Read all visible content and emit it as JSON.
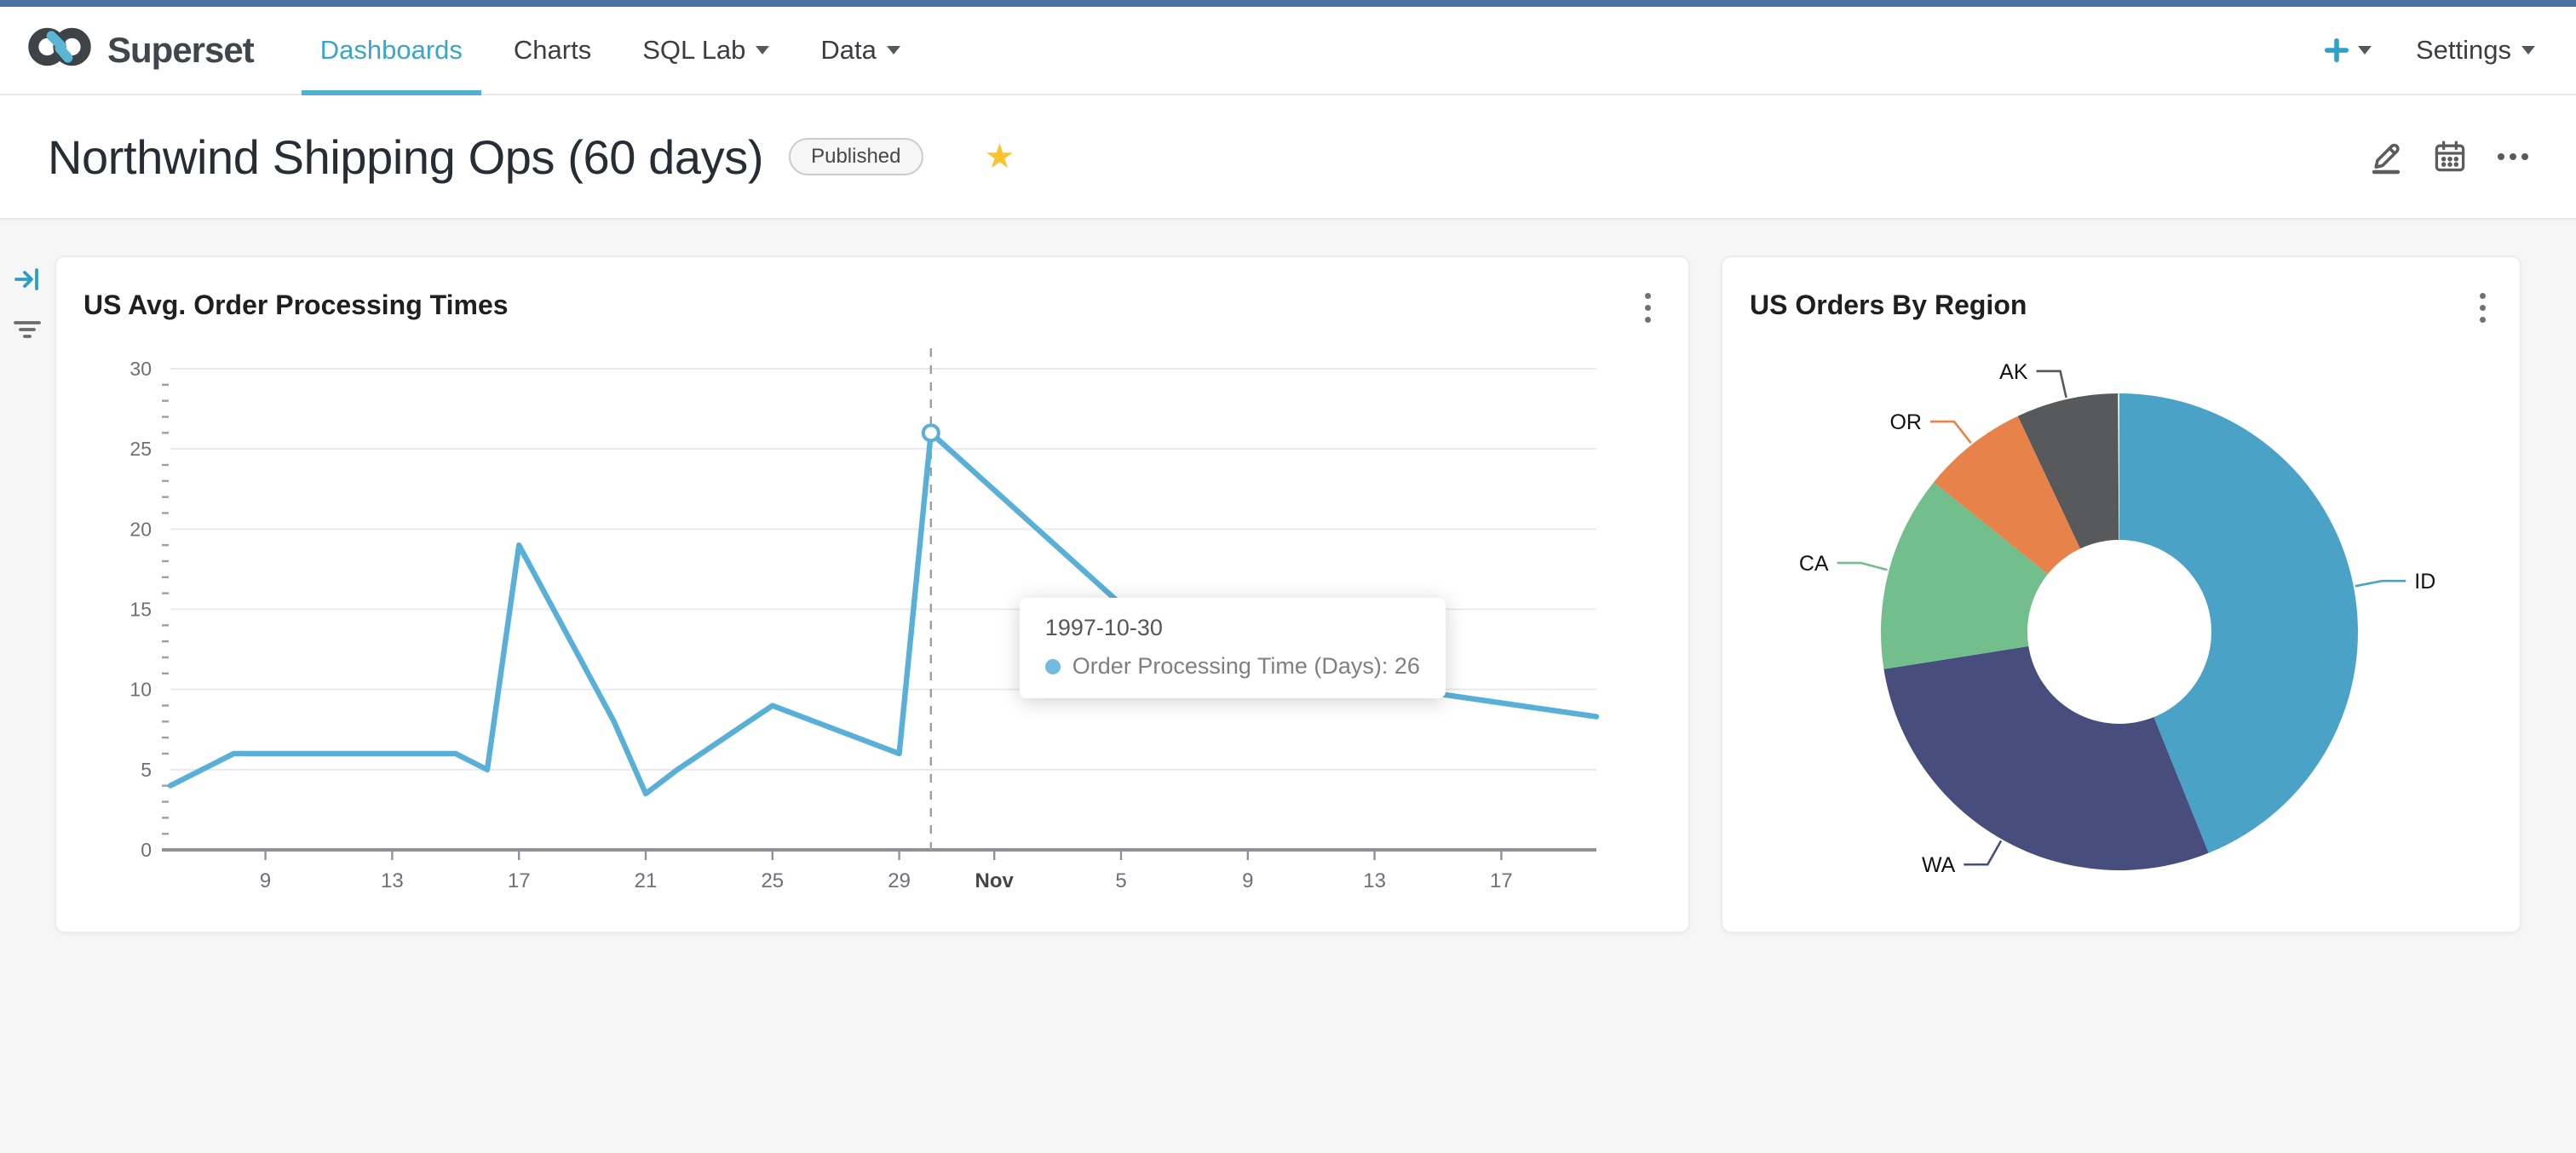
{
  "navbar": {
    "brand": "Superset",
    "items": [
      {
        "label": "Dashboards",
        "active": true,
        "caret": false
      },
      {
        "label": "Charts",
        "active": false,
        "caret": false
      },
      {
        "label": "SQL Lab",
        "active": false,
        "caret": true
      },
      {
        "label": "Data",
        "active": false,
        "caret": true
      }
    ],
    "settings_label": "Settings"
  },
  "dashboard": {
    "title": "Northwind Shipping Ops (60 days)",
    "badge": "Published"
  },
  "tooltip": {
    "date": "1997-10-30",
    "text": "Order Processing Time (Days): 26"
  },
  "icons": {
    "star": "★"
  },
  "colors": {
    "topstrip": "#4C70A0",
    "brand_cyan": "#2EA3C8",
    "nav_active": "#3BA6C9",
    "star": "#FBC32E",
    "content_bg": "#F6F6F6",
    "grid": "#E8EAF1",
    "axis": "#8F9298",
    "tick_label": "#6E7079"
  },
  "chart_data": [
    {
      "type": "line",
      "title": "US Avg. Order Processing Times",
      "series_name": "Order Processing Time (Days)",
      "color": "#58AFD8",
      "xlabel": "",
      "ylabel": "",
      "ylim": [
        0,
        30
      ],
      "yticks": [
        0,
        5,
        10,
        15,
        20,
        25,
        30
      ],
      "grid": true,
      "legend_position": "none",
      "x_start_date": "1997-10-06",
      "day_span": 45,
      "points": [
        {
          "date": "1997-10-06",
          "day": 0,
          "value": 4
        },
        {
          "date": "1997-10-08",
          "day": 2,
          "value": 6
        },
        {
          "date": "1997-10-13",
          "day": 7,
          "value": 6
        },
        {
          "date": "1997-10-15",
          "day": 9,
          "value": 6
        },
        {
          "date": "1997-10-16",
          "day": 10,
          "value": 5
        },
        {
          "date": "1997-10-17",
          "day": 11,
          "value": 19
        },
        {
          "date": "1997-10-20",
          "day": 14,
          "value": 8
        },
        {
          "date": "1997-10-21",
          "day": 15,
          "value": 3.5
        },
        {
          "date": "1997-10-22",
          "day": 16,
          "value": 5
        },
        {
          "date": "1997-10-25",
          "day": 19,
          "value": 9
        },
        {
          "date": "1997-10-29",
          "day": 23,
          "value": 6
        },
        {
          "date": "1997-10-30",
          "day": 24,
          "value": 26
        },
        {
          "date": "1997-11-05",
          "day": 30,
          "value": 15.3
        },
        {
          "date": "1997-11-13",
          "day": 38,
          "value": 10.3
        },
        {
          "date": "1997-11-20",
          "day": 45,
          "value": 8.3
        }
      ],
      "xticks": [
        {
          "label": "9",
          "day": 3,
          "bold": false
        },
        {
          "label": "13",
          "day": 7,
          "bold": false
        },
        {
          "label": "17",
          "day": 11,
          "bold": false
        },
        {
          "label": "21",
          "day": 15,
          "bold": false
        },
        {
          "label": "25",
          "day": 19,
          "bold": false
        },
        {
          "label": "29",
          "day": 23,
          "bold": false
        },
        {
          "label": "Nov",
          "day": 26,
          "bold": true
        },
        {
          "label": "5",
          "day": 30,
          "bold": false
        },
        {
          "label": "9",
          "day": 34,
          "bold": false
        },
        {
          "label": "13",
          "day": 38,
          "bold": false
        },
        {
          "label": "17",
          "day": 42,
          "bold": false
        }
      ],
      "highlight": {
        "date": "1997-10-30",
        "day": 24,
        "value": 26
      }
    },
    {
      "type": "donut",
      "title": "US Orders By Region",
      "clockwise": true,
      "start_angle": "top",
      "inner_radius_ratio": 0.386,
      "slices": [
        {
          "label": "ID",
          "pct": 43.9,
          "color": "#4AA3C6"
        },
        {
          "label": "WA",
          "pct": 28.6,
          "color": "#474E7E"
        },
        {
          "label": "CA",
          "pct": 13.3,
          "color": "#72BE8D"
        },
        {
          "label": "OR",
          "pct": 7.2,
          "color": "#E8824B"
        },
        {
          "label": "AK",
          "pct": 6.9,
          "color": "#58595B"
        }
      ]
    }
  ]
}
